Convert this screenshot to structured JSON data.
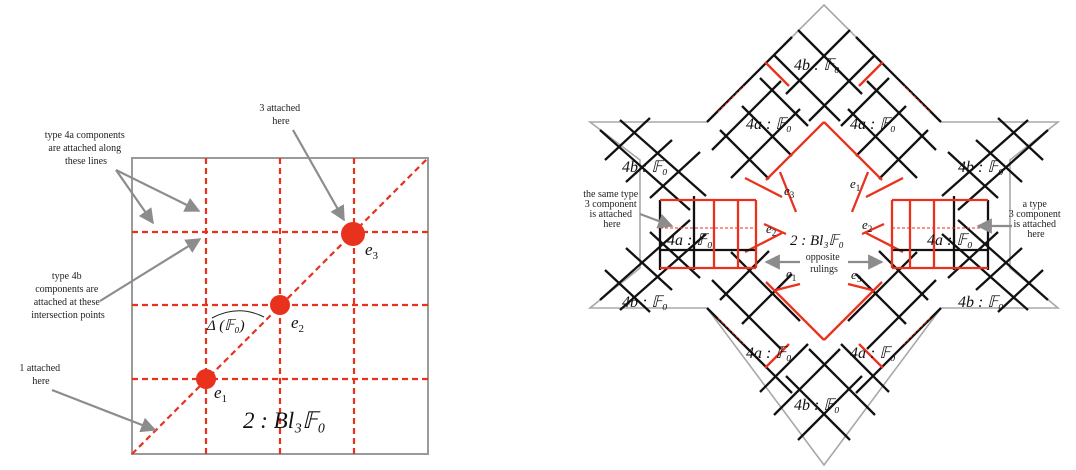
{
  "left_panel": {
    "annotations": {
      "type4a": [
        "type 4a components",
        "are attached along",
        "these lines"
      ],
      "type4b": [
        "type 4b",
        "components are",
        "attached at these",
        "intersection points"
      ],
      "one_attached": [
        "1 attached",
        "here"
      ],
      "three_attached": [
        "3 attached",
        "here"
      ]
    },
    "points": {
      "e1": "e",
      "e1_sub": "1",
      "e2": "e",
      "e2_sub": "2",
      "e3": "e",
      "e3_sub": "3"
    },
    "diag_label": "Δ (𝔽₀)",
    "component_label": "2 : Bl₃𝔽₀"
  },
  "right_panel": {
    "center_label": "2 : Bl₃𝔽₀",
    "opposite": [
      "opposite",
      "rulings"
    ],
    "left_note": [
      "the same type",
      "3 component",
      "is attached",
      "here"
    ],
    "right_note": [
      "a type",
      "3 component",
      "is attached",
      "here"
    ],
    "labels_4a": [
      "4a : 𝔽₀",
      "4a : 𝔽₀",
      "4a : 𝔽₀",
      "4a : 𝔽₀",
      "4a : 𝔽₀",
      "4a : 𝔽₀"
    ],
    "labels_4b": [
      "4b : 𝔽₀",
      "4b : 𝔽₀",
      "4b : 𝔽₀",
      "4b : 𝔽₀",
      "4b : 𝔽₀",
      "4b : 𝔽₀"
    ],
    "inner_e": [
      "e",
      "e",
      "e",
      "e",
      "e",
      "e"
    ],
    "inner_e_sub": [
      "3",
      "1",
      "2",
      "2",
      "1",
      "3"
    ]
  },
  "colors": {
    "red": "#e8321e",
    "gray": "#9a9a9a",
    "black": "#111111"
  }
}
